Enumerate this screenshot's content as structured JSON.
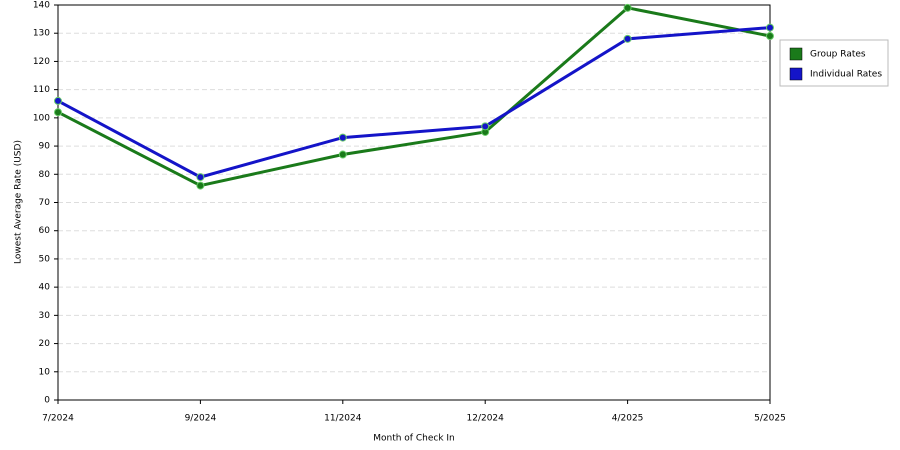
{
  "chart_data": {
    "type": "line",
    "x_label": "Month of Check In",
    "y_label": "Lowest Average Rate (USD)",
    "categories": [
      "7/2024",
      "9/2024",
      "11/2024",
      "12/2024",
      "4/2025",
      "5/2025"
    ],
    "series": [
      {
        "name": "Group Rates",
        "color": "#1a7a1a",
        "values": [
          102,
          76,
          87,
          95,
          139,
          129
        ]
      },
      {
        "name": "Individual Rates",
        "color": "#1414c8",
        "values": [
          106,
          79,
          93,
          97,
          128,
          132
        ]
      }
    ],
    "ylim": [
      0,
      140
    ],
    "yticks": [
      0,
      10,
      20,
      30,
      40,
      50,
      60,
      70,
      80,
      90,
      100,
      110,
      120,
      130,
      140
    ],
    "grid": true,
    "legend": "right"
  }
}
